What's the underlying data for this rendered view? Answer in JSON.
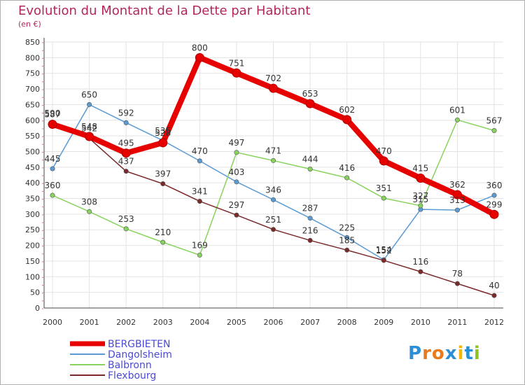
{
  "header": {
    "title": "Evolution du Montant de la Dette par Habitant",
    "unit": "(en €)"
  },
  "logo": {
    "text": "Proxiti",
    "letters": [
      "P",
      "r",
      "o",
      "x",
      "i",
      "t",
      "i"
    ],
    "colors": [
      "#2a8fd6",
      "#e87b1c",
      "#e87b1c",
      "#2a8fd6",
      "#f5b700",
      "#2a8fd6",
      "#8fc31f"
    ]
  },
  "chart_data": {
    "type": "line",
    "x": [
      "2000",
      "2001",
      "2002",
      "2003",
      "2004",
      "2005",
      "2006",
      "2007",
      "2008",
      "2009",
      "2010",
      "2011",
      "2012"
    ],
    "yticks": [
      0,
      50,
      100,
      150,
      200,
      250,
      300,
      350,
      400,
      450,
      500,
      550,
      600,
      650,
      700,
      750,
      800,
      850
    ],
    "ylim": [
      0,
      850
    ],
    "grid": true,
    "legend_position": "bottom-left",
    "series": [
      {
        "name": "BERGBIETEN",
        "color": "#e60000",
        "emphasis": true,
        "values": [
          587,
          548,
          495,
          528,
          800,
          751,
          702,
          653,
          602,
          470,
          415,
          362,
          299
        ],
        "labels": [
          "587",
          "548",
          "495",
          "528",
          "800",
          "751",
          "702",
          "653",
          "602",
          "470",
          "415",
          "362",
          "299"
        ]
      },
      {
        "name": "Dangolsheim",
        "color": "#5a9bd4",
        "emphasis": false,
        "values": [
          445,
          650,
          592,
          535,
          470,
          403,
          346,
          287,
          225,
          154,
          315,
          313,
          360
        ],
        "labels": [
          "445",
          "650",
          "592",
          "535",
          "470",
          "403",
          "346",
          "287",
          "225",
          "154",
          "315",
          "313",
          "360"
        ]
      },
      {
        "name": "Balbronn",
        "color": "#88d35e",
        "emphasis": false,
        "values": [
          360,
          308,
          253,
          210,
          169,
          497,
          471,
          444,
          416,
          351,
          327,
          601,
          567
        ],
        "labels": [
          "360",
          "308",
          "253",
          "210",
          "169",
          "497",
          "471",
          "444",
          "416",
          "351",
          "327",
          "601",
          "567"
        ]
      },
      {
        "name": "Flexbourg",
        "color": "#7a2a2a",
        "emphasis": false,
        "values": [
          590,
          542,
          437,
          397,
          341,
          297,
          251,
          216,
          185,
          152,
          116,
          78,
          40
        ],
        "labels": [
          "590",
          "542",
          "437",
          "397",
          "341",
          "297",
          "251",
          "216",
          "185",
          "152",
          "116",
          "78",
          "40"
        ]
      }
    ]
  }
}
